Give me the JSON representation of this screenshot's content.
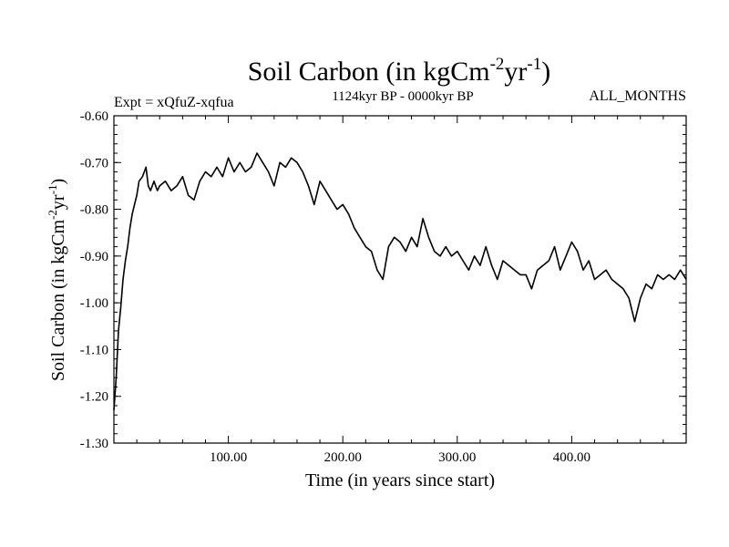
{
  "chart_data": {
    "type": "line",
    "title": "Soil Carbon (in kgCm",
    "title_sup1": "-2",
    "title_mid": "yr",
    "title_sup2": "-1",
    "title_end": ")",
    "subtitle_left": "Expt = xQfuZ-xqfua",
    "subtitle_center": "1124kyr BP - 0000kyr BP",
    "subtitle_right": "ALL_MONTHS",
    "xlabel": "Time (in years since start)",
    "ylabel": "Soil Carbon (in kgCm",
    "ylabel_sup1": "-2",
    "ylabel_mid": "yr",
    "ylabel_sup2": "-1",
    "ylabel_end": ")",
    "xlim": [
      0,
      500
    ],
    "ylim": [
      -1.3,
      -0.6
    ],
    "x_ticks": [
      100,
      200,
      300,
      400
    ],
    "x_tick_labels": [
      "100.00",
      "200.00",
      "300.00",
      "400.00"
    ],
    "y_ticks": [
      -1.3,
      -1.2,
      -1.1,
      -1.0,
      -0.9,
      -0.8,
      -0.7,
      -0.6
    ],
    "y_tick_labels": [
      "-1.30",
      "-1.20",
      "-1.10",
      "-1.00",
      "-0.90",
      "-0.80",
      "-0.70",
      "-0.60"
    ],
    "series": [
      {
        "name": "Soil Carbon",
        "color": "#000000",
        "x": [
          0,
          2,
          4,
          6,
          8,
          10,
          12,
          14,
          16,
          18,
          20,
          22,
          25,
          28,
          30,
          32,
          35,
          38,
          40,
          45,
          50,
          55,
          60,
          65,
          70,
          75,
          80,
          85,
          90,
          95,
          100,
          105,
          110,
          115,
          120,
          125,
          130,
          135,
          140,
          145,
          150,
          155,
          160,
          165,
          170,
          175,
          180,
          185,
          190,
          195,
          200,
          205,
          210,
          215,
          220,
          225,
          230,
          235,
          240,
          245,
          250,
          255,
          260,
          265,
          270,
          275,
          280,
          285,
          290,
          295,
          300,
          305,
          310,
          315,
          320,
          325,
          330,
          335,
          340,
          345,
          350,
          355,
          360,
          365,
          370,
          375,
          380,
          385,
          390,
          395,
          400,
          405,
          410,
          415,
          420,
          425,
          430,
          435,
          440,
          445,
          450,
          455,
          460,
          465,
          470,
          475,
          480,
          485,
          490,
          495,
          500
        ],
        "values": [
          -1.23,
          -1.16,
          -1.06,
          -1.01,
          -0.95,
          -0.91,
          -0.88,
          -0.84,
          -0.81,
          -0.79,
          -0.77,
          -0.74,
          -0.73,
          -0.71,
          -0.75,
          -0.76,
          -0.74,
          -0.76,
          -0.75,
          -0.74,
          -0.76,
          -0.75,
          -0.73,
          -0.77,
          -0.78,
          -0.74,
          -0.72,
          -0.73,
          -0.71,
          -0.73,
          -0.69,
          -0.72,
          -0.7,
          -0.72,
          -0.71,
          -0.68,
          -0.7,
          -0.72,
          -0.75,
          -0.7,
          -0.71,
          -0.69,
          -0.7,
          -0.72,
          -0.75,
          -0.79,
          -0.74,
          -0.76,
          -0.78,
          -0.8,
          -0.79,
          -0.81,
          -0.84,
          -0.86,
          -0.88,
          -0.89,
          -0.93,
          -0.95,
          -0.88,
          -0.86,
          -0.87,
          -0.89,
          -0.86,
          -0.88,
          -0.82,
          -0.86,
          -0.89,
          -0.9,
          -0.88,
          -0.9,
          -0.89,
          -0.91,
          -0.93,
          -0.9,
          -0.92,
          -0.88,
          -0.92,
          -0.95,
          -0.91,
          -0.92,
          -0.93,
          -0.94,
          -0.94,
          -0.97,
          -0.93,
          -0.92,
          -0.91,
          -0.88,
          -0.93,
          -0.9,
          -0.87,
          -0.89,
          -0.93,
          -0.91,
          -0.95,
          -0.94,
          -0.93,
          -0.95,
          -0.96,
          -0.97,
          -0.99,
          -1.04,
          -0.99,
          -0.96,
          -0.97,
          -0.94,
          -0.95,
          -0.94,
          -0.95,
          -0.93,
          -0.95
        ]
      }
    ]
  }
}
